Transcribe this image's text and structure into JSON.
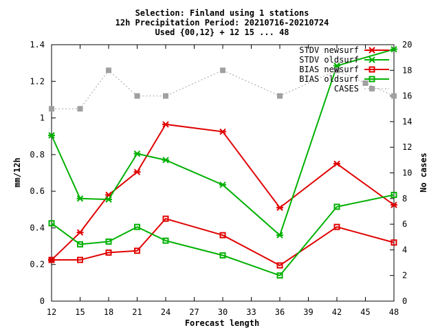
{
  "chart_data": {
    "type": "line",
    "title_lines": [
      "Selection: Finland using     1 stations",
      "12h Precipitation   Period: 20210716-20210724",
      "Used {00,12} + 12 15 ... 48"
    ],
    "xlabel": "Forecast length",
    "ylabel": "mm/12h",
    "y2label": "No cases",
    "xlim": [
      12,
      48
    ],
    "ylim": [
      0,
      1.4
    ],
    "y2lim": [
      0,
      20
    ],
    "x_ticks": [
      "12",
      "15",
      "18",
      "21",
      "24",
      "27",
      "30",
      "33",
      "36",
      "39",
      "42",
      "45",
      "48"
    ],
    "y_ticks": [
      "0",
      "0.2",
      "0.4",
      "0.6",
      "0.8",
      "1",
      "1.2",
      "1.4"
    ],
    "y2_ticks": [
      "0",
      "2",
      "4",
      "6",
      "8",
      "10",
      "12",
      "14",
      "16",
      "18",
      "20"
    ],
    "legend_position": "top-right",
    "series": [
      {
        "name": "STDV newsurf",
        "color": "#e00000",
        "marker": "x-icon",
        "axis": "y",
        "dash": false,
        "x": [
          12,
          15,
          18,
          21,
          24,
          30,
          36,
          42,
          48
        ],
        "y": [
          0.225,
          0.375,
          0.58,
          0.705,
          0.965,
          0.925,
          0.51,
          0.75,
          0.525
        ]
      },
      {
        "name": "STDV oldsurf",
        "color": "#00b000",
        "marker": "x-icon",
        "axis": "y",
        "dash": false,
        "x": [
          12,
          15,
          18,
          21,
          24,
          30,
          36,
          42,
          48
        ],
        "y": [
          0.905,
          0.56,
          0.555,
          0.805,
          0.77,
          0.635,
          0.36,
          1.285,
          1.375
        ]
      },
      {
        "name": "BIAS newsurf",
        "color": "#e00000",
        "marker": "square-icon",
        "axis": "y",
        "dash": false,
        "x": [
          12,
          15,
          18,
          21,
          24,
          30,
          36,
          42,
          48
        ],
        "y": [
          0.225,
          0.225,
          0.265,
          0.275,
          0.45,
          0.36,
          0.195,
          0.405,
          0.32
        ]
      },
      {
        "name": "BIAS oldsurf",
        "color": "#00b000",
        "marker": "square-icon",
        "axis": "y",
        "dash": false,
        "x": [
          12,
          15,
          18,
          21,
          24,
          30,
          36,
          42,
          48
        ],
        "y": [
          0.425,
          0.31,
          0.325,
          0.405,
          0.33,
          0.25,
          0.14,
          0.515,
          0.58
        ]
      },
      {
        "name": "CASES",
        "color": "#a0a0a0",
        "marker": "filled-square-icon",
        "axis": "y2",
        "dash": true,
        "x": [
          12,
          15,
          18,
          21,
          24,
          30,
          36,
          42,
          45,
          48
        ],
        "y": [
          15,
          15,
          18,
          16,
          16,
          18,
          16,
          18,
          17,
          16
        ]
      }
    ]
  }
}
